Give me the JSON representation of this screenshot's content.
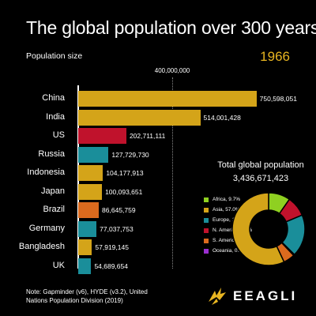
{
  "title": "The global population over 300 years",
  "subtitle": "Population size",
  "year": "1966",
  "note": "Note: Gapminder (v6), HYDE (v3.2), United Nations Population Division (2019)",
  "brand": "EEAGLI",
  "colors": {
    "asia": "#d4a419",
    "n_america": "#c0122c",
    "europe": "#1a8e9a",
    "s_america": "#db6a1e",
    "africa": "#8fd021",
    "oceania": "#9b2fd1"
  },
  "chart_data": {
    "type": "bar",
    "orientation": "horizontal",
    "x_tick_labels": [
      "400,000,000"
    ],
    "x_ticks": [
      400000000
    ],
    "xlim": [
      0,
      765000000
    ],
    "categories": [
      "China",
      "India",
      "US",
      "Russia",
      "Indonesia",
      "Japan",
      "Brazil",
      "Germany",
      "Bangladesh",
      "UK"
    ],
    "values": [
      750598051,
      514001428,
      202711111,
      127729730,
      104177913,
      100093651,
      86645759,
      77037753,
      57919145,
      54689654
    ],
    "value_labels": [
      "750,598,051",
      "514,001,428",
      "202,711,111",
      "127,729,730",
      "104,177,913",
      "100,093,651",
      "86,645,759",
      "77,037,753",
      "57,919,145",
      "54,689,654"
    ],
    "regions": [
      "asia",
      "asia",
      "n_america",
      "europe",
      "asia",
      "asia",
      "s_america",
      "europe",
      "asia",
      "europe"
    ],
    "pie": {
      "type": "pie",
      "title": "Total global population",
      "total_label": "3,436,671,423",
      "labels": [
        "Africa, 9.7%",
        "Asia, 57.0%",
        "Europe, 18.7%",
        "N. America, 9.0%",
        "S. America, 5.1%",
        "Oceania, 0.5%"
      ],
      "keys": [
        "africa",
        "asia",
        "europe",
        "n_america",
        "s_america",
        "oceania"
      ],
      "values": [
        9.7,
        57.0,
        18.7,
        9.0,
        5.1,
        0.5
      ]
    }
  }
}
